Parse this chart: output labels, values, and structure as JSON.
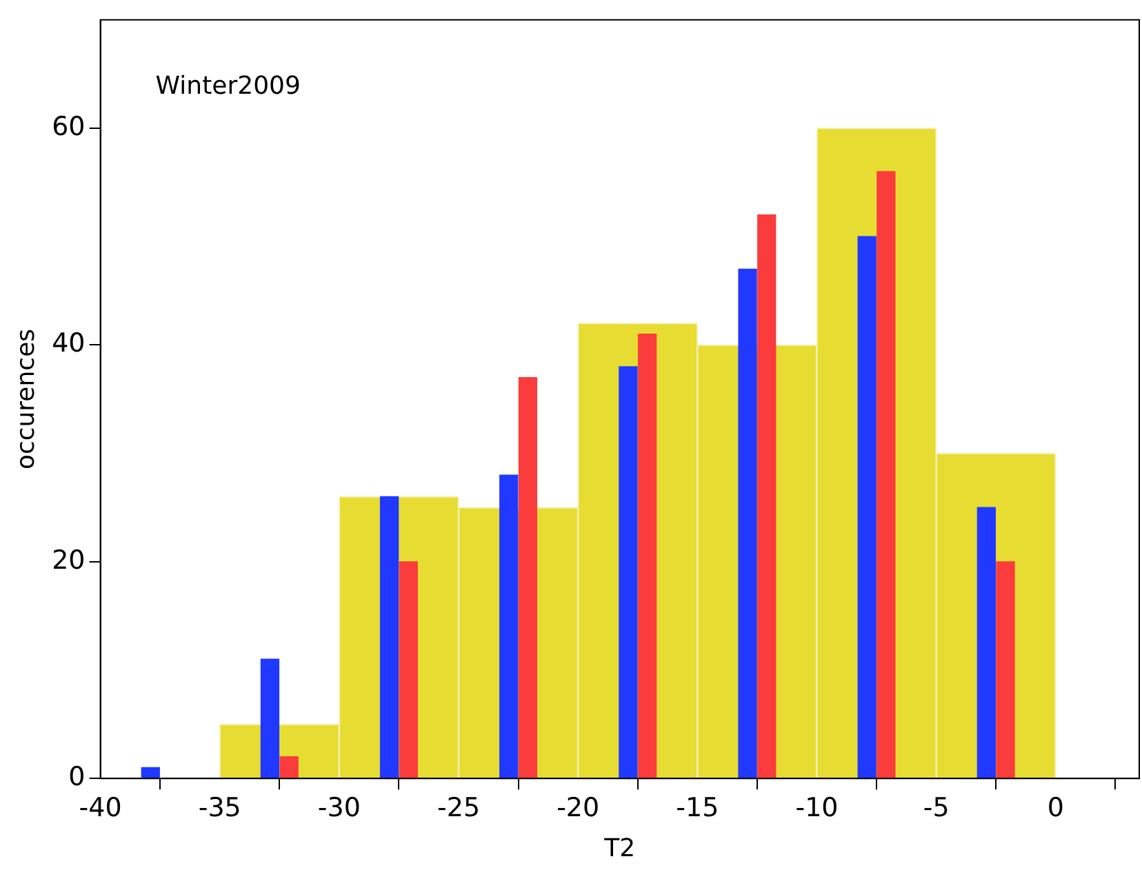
{
  "chart_data": {
    "type": "histogram",
    "title": "Winter2009",
    "xlabel": "T2",
    "ylabel": "occurences",
    "series": [
      {
        "bins": [
          -35,
          -30,
          -25,
          -20,
          -15,
          -10,
          -5,
          0
        ],
        "values": [
          5,
          26,
          25,
          42,
          40,
          60,
          30
        ],
        "color": "#e6dc32"
      },
      {
        "type": "bar",
        "x": [
          -37.9,
          -32.9,
          -27.9,
          -22.9,
          -17.9,
          -12.9,
          -7.9,
          -2.9
        ],
        "values": [
          1,
          11,
          26,
          28,
          38,
          47,
          50,
          25
        ],
        "color": "#2038ff"
      },
      {
        "type": "bar",
        "x": [
          -32.1,
          -27.1,
          -22.1,
          -17.1,
          -12.1,
          -7.1,
          -2.1
        ],
        "values": [
          2,
          20,
          37,
          41,
          52,
          56,
          20
        ],
        "color": "#fa3c3c"
      }
    ],
    "xlim": [
      -40,
      3.5
    ],
    "ylim": [
      0,
      70
    ],
    "xticks": [
      -40,
      -35,
      -30,
      -25,
      -20,
      -15,
      -10,
      -5,
      0
    ],
    "yticks": [
      0,
      20,
      40,
      60
    ],
    "grid": false,
    "legend": false
  }
}
